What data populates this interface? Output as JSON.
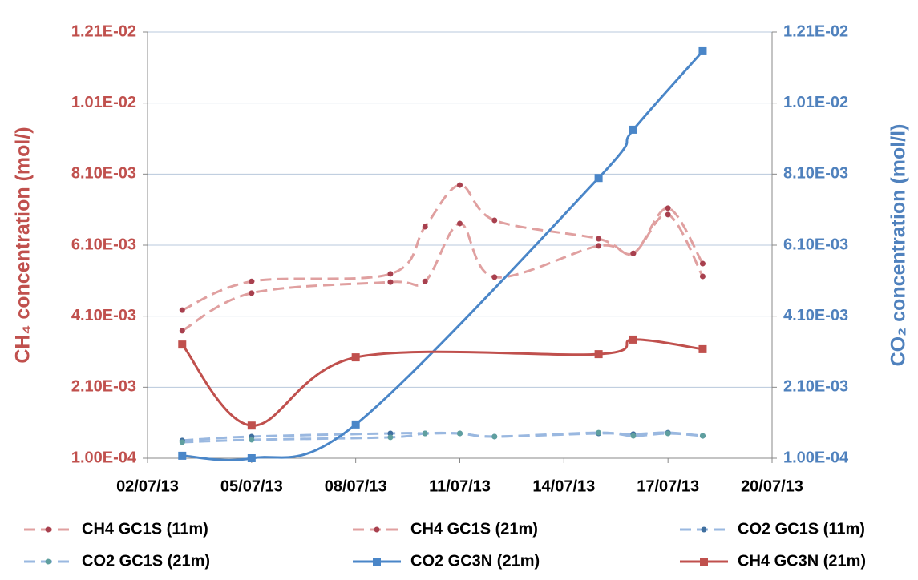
{
  "chart_data": {
    "type": "line",
    "y_title": "CH₄ concentration (mol/)",
    "y2_title": "CO₂ concentration (mol/l)",
    "xlim": [
      "02/07/13",
      "20/07/13"
    ],
    "xticks": [
      "02/07/13",
      "05/07/13",
      "08/07/13",
      "11/07/13",
      "14/07/13",
      "17/07/13",
      "20/07/13"
    ],
    "ylim": [
      0.0001,
      0.0121
    ],
    "yticks": [
      {
        "value": 0.0001,
        "label": "1.00E-04"
      },
      {
        "value": 0.0021,
        "label": "2.10E-03"
      },
      {
        "value": 0.0041,
        "label": "4.10E-03"
      },
      {
        "value": 0.0061,
        "label": "6.10E-03"
      },
      {
        "value": 0.0081,
        "label": "8.10E-03"
      },
      {
        "value": 0.0101,
        "label": "1.01E-02"
      },
      {
        "value": 0.0121,
        "label": "1.21E-02"
      }
    ],
    "y2lim": [
      0.0001,
      0.0121
    ],
    "y2ticks": [
      {
        "value": 0.0001,
        "label": "1.00E-04"
      },
      {
        "value": 0.0021,
        "label": "2.10E-03"
      },
      {
        "value": 0.0041,
        "label": "4.10E-03"
      },
      {
        "value": 0.0061,
        "label": "6.10E-03"
      },
      {
        "value": 0.0081,
        "label": "8.10E-03"
      },
      {
        "value": 0.0101,
        "label": "1.01E-02"
      },
      {
        "value": 0.0121,
        "label": "1.21E-02"
      }
    ],
    "grid": true,
    "legend": "bottom",
    "series": [
      {
        "name": "CH4 GC1S (11m)",
        "color": "#e0a0a0",
        "marker_color": "#a8404e",
        "marker": "circle",
        "dashed": true,
        "x": [
          "03/07/13",
          "05/07/13",
          "09/07/13",
          "10/07/13",
          "11/07/13",
          "12/07/13",
          "15/07/13",
          "16/07/13",
          "17/07/13",
          "18/07/13"
        ],
        "values": [
          0.00427,
          0.00508,
          0.00529,
          0.00662,
          0.00779,
          0.0068,
          0.00628,
          0.00587,
          0.00714,
          0.00558
        ]
      },
      {
        "name": "CH4 GC1S (21m)",
        "color": "#e0a0a0",
        "marker_color": "#a8404e",
        "marker": "circle",
        "dashed": true,
        "x": [
          "03/07/13",
          "05/07/13",
          "09/07/13",
          "10/07/13",
          "11/07/13",
          "12/07/13",
          "15/07/13",
          "16/07/13",
          "17/07/13",
          "18/07/13"
        ],
        "values": [
          0.00369,
          0.00475,
          0.00506,
          0.00508,
          0.00671,
          0.0052,
          0.00608,
          0.00587,
          0.00696,
          0.00522
        ]
      },
      {
        "name": "CO2 GC1S (11m)",
        "color": "#9ab8e0",
        "marker_color": "#3f6f9f",
        "marker": "circle",
        "dashed": true,
        "axis": "y2",
        "x": [
          "03/07/13",
          "05/07/13",
          "09/07/13",
          "10/07/13",
          "11/07/13",
          "12/07/13",
          "15/07/13",
          "16/07/13",
          "17/07/13",
          "18/07/13"
        ],
        "values": [
          0.0006,
          0.00071,
          0.0008,
          0.0008,
          0.0008,
          0.00071,
          0.0008,
          0.00078,
          0.00082,
          0.00073
        ]
      },
      {
        "name": "CO2 GC1S (21m)",
        "color": "#9ab8e0",
        "marker_color": "#5f9f9f",
        "marker": "circle",
        "dashed": true,
        "axis": "y2",
        "x": [
          "03/07/13",
          "05/07/13",
          "09/07/13",
          "10/07/13",
          "11/07/13",
          "12/07/13",
          "15/07/13",
          "16/07/13",
          "17/07/13",
          "18/07/13"
        ],
        "values": [
          0.00055,
          0.00062,
          0.00069,
          0.0008,
          0.0008,
          0.00071,
          0.00082,
          0.00073,
          0.0008,
          0.00073
        ]
      },
      {
        "name": "CO2 GC3N (21m)",
        "color": "#4a86c8",
        "marker_color": "#4a86c8",
        "marker": "square",
        "dashed": false,
        "axis": "y2",
        "x": [
          "03/07/13",
          "05/07/13",
          "08/07/13",
          "15/07/13",
          "16/07/13",
          "18/07/13"
        ],
        "values": [
          0.00017,
          0.0001,
          0.00105,
          0.00799,
          0.00935,
          0.01156
        ]
      },
      {
        "name": "CH4 GC3N (21m)",
        "color": "#c0504d",
        "marker_color": "#c0504d",
        "marker": "square",
        "dashed": false,
        "x": [
          "03/07/13",
          "05/07/13",
          "08/07/13",
          "15/07/13",
          "16/07/13",
          "18/07/13"
        ],
        "values": [
          0.0033,
          0.00102,
          0.00294,
          0.00303,
          0.00344,
          0.00317
        ]
      }
    ]
  }
}
